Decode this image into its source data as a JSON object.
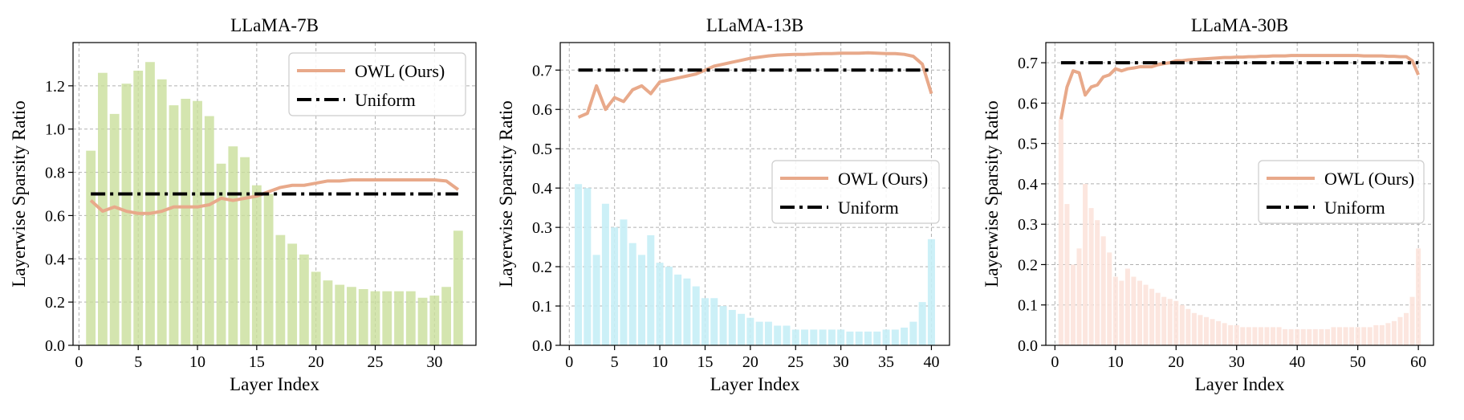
{
  "colors": {
    "owl_line": "#E8A98A",
    "uniform_line": "#000000",
    "grid": "#B0B0B0",
    "legend_border": "#CCCCCC"
  },
  "chart_data": [
    {
      "type": "bar",
      "title": "LLaMA-7B",
      "xlabel": "Layer Index",
      "ylabel": "Layerwise Sparsity Ratio",
      "bar_color": "#C9DE9B",
      "bar_opacity": 0.8,
      "xlim": [
        -0.5,
        33.5
      ],
      "ylim": [
        0.0,
        1.4
      ],
      "xticks": [
        0,
        5,
        10,
        15,
        20,
        25,
        30
      ],
      "yticks": [
        0.0,
        0.2,
        0.4,
        0.6,
        0.8,
        1.0,
        1.2
      ],
      "ytick_labels": [
        "0.0",
        "0.2",
        "0.4",
        "0.6",
        "0.8",
        "1.0",
        "1.2"
      ],
      "grid": true,
      "legend_position": "top-right",
      "bars": {
        "x": [
          1,
          2,
          3,
          4,
          5,
          6,
          7,
          8,
          9,
          10,
          11,
          12,
          13,
          14,
          15,
          16,
          17,
          18,
          19,
          20,
          21,
          22,
          23,
          24,
          25,
          26,
          27,
          28,
          29,
          30,
          31,
          32
        ],
        "values": [
          0.9,
          1.26,
          1.07,
          1.21,
          1.27,
          1.31,
          1.23,
          1.11,
          1.14,
          1.13,
          1.06,
          0.84,
          0.92,
          0.87,
          0.74,
          0.7,
          0.51,
          0.47,
          0.42,
          0.34,
          0.3,
          0.28,
          0.27,
          0.26,
          0.25,
          0.25,
          0.25,
          0.25,
          0.22,
          0.23,
          0.27,
          0.53
        ]
      },
      "series": [
        {
          "name": "OWL (Ours)",
          "style": "solid",
          "x": [
            1,
            2,
            3,
            4,
            5,
            6,
            7,
            8,
            9,
            10,
            11,
            12,
            13,
            14,
            15,
            16,
            17,
            18,
            19,
            20,
            21,
            22,
            23,
            24,
            25,
            26,
            27,
            28,
            29,
            30,
            31,
            32
          ],
          "values": [
            0.67,
            0.62,
            0.64,
            0.62,
            0.61,
            0.61,
            0.62,
            0.64,
            0.64,
            0.64,
            0.65,
            0.68,
            0.67,
            0.68,
            0.69,
            0.71,
            0.73,
            0.74,
            0.74,
            0.75,
            0.76,
            0.76,
            0.765,
            0.765,
            0.765,
            0.765,
            0.765,
            0.765,
            0.765,
            0.765,
            0.76,
            0.72
          ]
        },
        {
          "name": "Uniform",
          "style": "dashdot",
          "x": [
            1,
            32
          ],
          "values": [
            0.7,
            0.7
          ]
        }
      ]
    },
    {
      "type": "bar",
      "title": "LLaMA-13B",
      "xlabel": "Layer Index",
      "ylabel": "Layerwise Sparsity Ratio",
      "bar_color": "#C6EEF6",
      "bar_opacity": 0.9,
      "xlim": [
        -1,
        42
      ],
      "ylim": [
        0.0,
        0.77
      ],
      "xticks": [
        0,
        5,
        10,
        15,
        20,
        25,
        30,
        35,
        40
      ],
      "yticks": [
        0.0,
        0.1,
        0.2,
        0.3,
        0.4,
        0.5,
        0.6,
        0.7
      ],
      "ytick_labels": [
        "0.0",
        "0.1",
        "0.2",
        "0.3",
        "0.4",
        "0.5",
        "0.6",
        "0.7"
      ],
      "grid": true,
      "legend_position": "center-right",
      "bars": {
        "x": [
          1,
          2,
          3,
          4,
          5,
          6,
          7,
          8,
          9,
          10,
          11,
          12,
          13,
          14,
          15,
          16,
          17,
          18,
          19,
          20,
          21,
          22,
          23,
          24,
          25,
          26,
          27,
          28,
          29,
          30,
          31,
          32,
          33,
          34,
          35,
          36,
          37,
          38,
          39,
          40
        ],
        "values": [
          0.41,
          0.4,
          0.23,
          0.36,
          0.3,
          0.32,
          0.26,
          0.23,
          0.28,
          0.21,
          0.2,
          0.18,
          0.17,
          0.15,
          0.12,
          0.12,
          0.1,
          0.09,
          0.08,
          0.07,
          0.06,
          0.06,
          0.05,
          0.05,
          0.04,
          0.04,
          0.04,
          0.04,
          0.04,
          0.04,
          0.035,
          0.035,
          0.035,
          0.035,
          0.04,
          0.04,
          0.045,
          0.06,
          0.11,
          0.27
        ]
      },
      "series": [
        {
          "name": "OWL (Ours)",
          "style": "solid",
          "x": [
            1,
            2,
            3,
            4,
            5,
            6,
            7,
            8,
            9,
            10,
            11,
            12,
            13,
            14,
            15,
            16,
            17,
            18,
            19,
            20,
            21,
            22,
            23,
            24,
            25,
            26,
            27,
            28,
            29,
            30,
            31,
            32,
            33,
            34,
            35,
            36,
            37,
            38,
            39,
            40
          ],
          "values": [
            0.58,
            0.59,
            0.66,
            0.6,
            0.63,
            0.62,
            0.65,
            0.66,
            0.64,
            0.67,
            0.675,
            0.68,
            0.685,
            0.69,
            0.7,
            0.71,
            0.715,
            0.72,
            0.725,
            0.73,
            0.733,
            0.736,
            0.738,
            0.739,
            0.74,
            0.74,
            0.741,
            0.742,
            0.742,
            0.743,
            0.743,
            0.743,
            0.744,
            0.743,
            0.742,
            0.742,
            0.74,
            0.735,
            0.715,
            0.64
          ]
        },
        {
          "name": "Uniform",
          "style": "dashdot",
          "x": [
            1,
            40
          ],
          "values": [
            0.7,
            0.7
          ]
        }
      ]
    },
    {
      "type": "bar",
      "title": "LLaMA-30B",
      "xlabel": "Layer Index",
      "ylabel": "Layerwise Sparsity Ratio",
      "bar_color": "#FCE3DC",
      "bar_opacity": 0.9,
      "xlim": [
        -1.5,
        62.5
      ],
      "ylim": [
        0.0,
        0.75
      ],
      "xticks": [
        0,
        10,
        20,
        30,
        40,
        50,
        60
      ],
      "yticks": [
        0.0,
        0.1,
        0.2,
        0.3,
        0.4,
        0.5,
        0.6,
        0.7
      ],
      "ytick_labels": [
        "0.0",
        "0.1",
        "0.2",
        "0.3",
        "0.4",
        "0.5",
        "0.6",
        "0.7"
      ],
      "grid": true,
      "legend_position": "center-right",
      "bars": {
        "x": [
          1,
          2,
          3,
          4,
          5,
          6,
          7,
          8,
          9,
          10,
          11,
          12,
          13,
          14,
          15,
          16,
          17,
          18,
          19,
          20,
          21,
          22,
          23,
          24,
          25,
          26,
          27,
          28,
          29,
          30,
          31,
          32,
          33,
          34,
          35,
          36,
          37,
          38,
          39,
          40,
          41,
          42,
          43,
          44,
          45,
          46,
          47,
          48,
          49,
          50,
          51,
          52,
          53,
          54,
          55,
          56,
          57,
          58,
          59,
          60
        ],
        "values": [
          0.56,
          0.35,
          0.2,
          0.24,
          0.4,
          0.34,
          0.31,
          0.27,
          0.23,
          0.17,
          0.16,
          0.19,
          0.17,
          0.16,
          0.15,
          0.14,
          0.13,
          0.12,
          0.115,
          0.11,
          0.1,
          0.09,
          0.08,
          0.075,
          0.07,
          0.065,
          0.06,
          0.055,
          0.05,
          0.05,
          0.045,
          0.045,
          0.045,
          0.045,
          0.045,
          0.045,
          0.045,
          0.04,
          0.04,
          0.04,
          0.04,
          0.04,
          0.04,
          0.04,
          0.04,
          0.045,
          0.045,
          0.045,
          0.045,
          0.045,
          0.045,
          0.045,
          0.05,
          0.05,
          0.055,
          0.06,
          0.07,
          0.08,
          0.12,
          0.24
        ]
      },
      "series": [
        {
          "name": "OWL (Ours)",
          "style": "solid",
          "x": [
            1,
            2,
            3,
            4,
            5,
            6,
            7,
            8,
            9,
            10,
            11,
            12,
            13,
            14,
            15,
            16,
            17,
            18,
            19,
            20,
            21,
            22,
            23,
            24,
            25,
            26,
            27,
            28,
            29,
            30,
            31,
            32,
            33,
            34,
            35,
            36,
            37,
            38,
            39,
            40,
            41,
            42,
            43,
            44,
            45,
            46,
            47,
            48,
            49,
            50,
            51,
            52,
            53,
            54,
            55,
            56,
            57,
            58,
            59,
            60
          ],
          "values": [
            0.56,
            0.64,
            0.68,
            0.675,
            0.62,
            0.64,
            0.645,
            0.665,
            0.67,
            0.685,
            0.68,
            0.685,
            0.687,
            0.69,
            0.69,
            0.69,
            0.695,
            0.698,
            0.7,
            0.705,
            0.705,
            0.707,
            0.708,
            0.709,
            0.71,
            0.711,
            0.712,
            0.713,
            0.713,
            0.714,
            0.714,
            0.715,
            0.715,
            0.716,
            0.716,
            0.717,
            0.717,
            0.717,
            0.718,
            0.718,
            0.718,
            0.718,
            0.718,
            0.718,
            0.718,
            0.718,
            0.718,
            0.718,
            0.718,
            0.718,
            0.717,
            0.717,
            0.717,
            0.717,
            0.716,
            0.716,
            0.715,
            0.715,
            0.705,
            0.67
          ]
        },
        {
          "name": "Uniform",
          "style": "dashdot",
          "x": [
            1,
            60
          ],
          "values": [
            0.7,
            0.7
          ]
        }
      ]
    }
  ]
}
